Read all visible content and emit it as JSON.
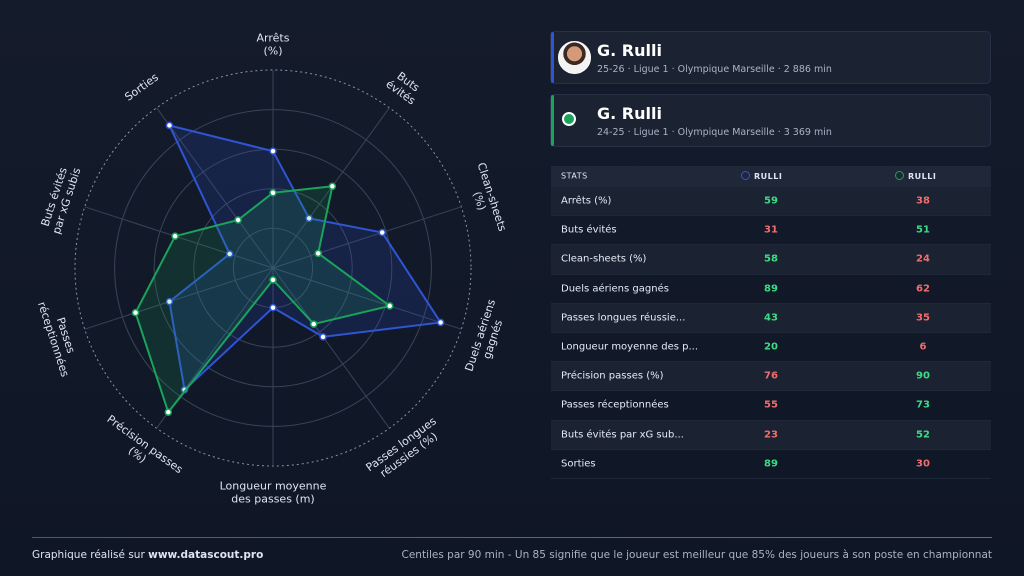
{
  "chart_data": {
    "type": "radar",
    "axes": [
      [
        "Arrêts",
        "(%)"
      ],
      [
        "Buts",
        "évités"
      ],
      [
        "Clean-sheets",
        "(%)"
      ],
      [
        "Duels aériens",
        "gagnés"
      ],
      [
        "Passes longues",
        "réussies (%)"
      ],
      [
        "Longueur moyenne",
        "des passes (m)"
      ],
      [
        "Précision passes",
        "(%)"
      ],
      [
        "Passes",
        "réceptionnées"
      ],
      [
        "Buts évités",
        "par xG subis"
      ],
      [
        "Sorties"
      ]
    ],
    "rlim": [
      0,
      100
    ],
    "rticks": [
      20,
      40,
      60,
      80,
      100
    ],
    "grid": true,
    "series": [
      {
        "name": "RULLI",
        "color": "#2f55d4",
        "values": [
          59,
          31,
          58,
          89,
          43,
          20,
          76,
          55,
          23,
          89
        ]
      },
      {
        "name": "RULLI",
        "color": "#1aa35a",
        "values": [
          38,
          51,
          24,
          62,
          35,
          6,
          90,
          73,
          52,
          30
        ]
      }
    ]
  },
  "players": [
    {
      "name": "G. Rulli",
      "details": "25-26 · Ligue 1 · Olympique Marseille · 2 886 min"
    },
    {
      "name": "G. Rulli",
      "details": "24-25 · Ligue 1 · Olympique Marseille · 3 369 min"
    }
  ],
  "table": {
    "header": "STATS",
    "rows": [
      "Arrêts (%)",
      "Buts évités",
      "Clean-sheets (%)",
      "Duels aériens gagnés",
      "Passes longues réussie...",
      "Longueur moyenne des p...",
      "Précision passes (%)",
      "Passes réceptionnées",
      "Buts évités par xG sub...",
      "Sorties"
    ],
    "better_color": "#3ddc84",
    "worse_color": "#f26d6d"
  },
  "footer": {
    "prefix": "Graphique réalisé sur",
    "site": "www.datascout.pro",
    "note": "Centiles par 90 min - Un 85 signifie que le joueur est meilleur que 85% des joueurs à son poste en championnat"
  }
}
